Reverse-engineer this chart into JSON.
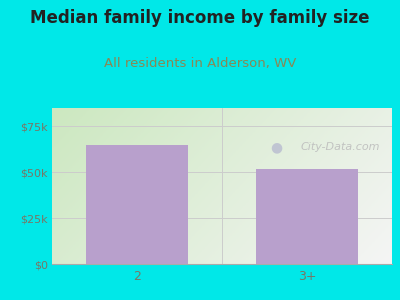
{
  "title": "Median family income by family size",
  "subtitle": "All residents in Alderson, WV",
  "categories": [
    "2",
    "3+"
  ],
  "values": [
    65000,
    52000
  ],
  "bar_color": "#b8a0cc",
  "background_color": "#00e8e8",
  "yticks": [
    0,
    25000,
    50000,
    75000
  ],
  "ytick_labels": [
    "$0",
    "$25k",
    "$50k",
    "$75k"
  ],
  "ylim": [
    0,
    85000
  ],
  "title_fontsize": 12,
  "subtitle_fontsize": 9.5,
  "subtitle_color": "#888855",
  "title_color": "#222222",
  "tick_color": "#777766",
  "watermark_text": "City-Data.com",
  "watermark_color": "#aaaaaa",
  "grad_left": "#cce8c0",
  "grad_right": "#f5f5f5"
}
